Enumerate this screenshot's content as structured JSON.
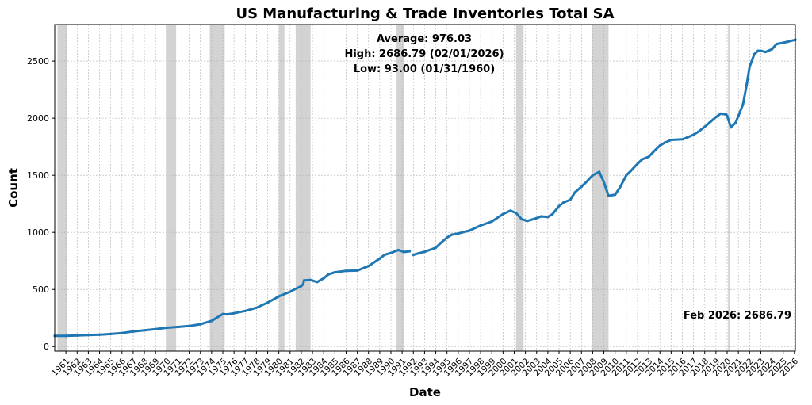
{
  "chart_data": {
    "type": "line",
    "title": "US Manufacturing & Trade Inventories Total SA",
    "xlabel": "Date",
    "ylabel": "Count",
    "xlim": [
      "1960-01-01",
      "2026-02-01"
    ],
    "ylim": [
      -40,
      2820
    ],
    "yticks": [
      0,
      500,
      1000,
      1500,
      2000,
      2500
    ],
    "xticks": [
      "1961",
      "1962",
      "1963",
      "1964",
      "1965",
      "1966",
      "1967",
      "1968",
      "1969",
      "1970",
      "1971",
      "1972",
      "1973",
      "1974",
      "1975",
      "1976",
      "1977",
      "1978",
      "1979",
      "1980",
      "1981",
      "1982",
      "1983",
      "1984",
      "1985",
      "1986",
      "1987",
      "1988",
      "1989",
      "1990",
      "1991",
      "1992",
      "1993",
      "1994",
      "1995",
      "1996",
      "1997",
      "1998",
      "1999",
      "2000",
      "2001",
      "2002",
      "2003",
      "2004",
      "2005",
      "2006",
      "2007",
      "2008",
      "2009",
      "2010",
      "2011",
      "2012",
      "2013",
      "2014",
      "2015",
      "2016",
      "2017",
      "2018",
      "2019",
      "2020",
      "2021",
      "2022",
      "2023",
      "2024",
      "2025",
      "2026"
    ],
    "grid": true,
    "stats": {
      "average": "Average: 976.03",
      "high": "High: 2686.79 (02/01/2026)",
      "low": "Low: 93.00 (01/31/1960)"
    },
    "last_label": "Feb 2026: 2686.79",
    "line_color": "#1f77b4",
    "recession_color": "#d3d3d3",
    "recessions": [
      [
        "1960-04-01",
        "1961-02-01"
      ],
      [
        "1969-12-01",
        "1970-11-01"
      ],
      [
        "1973-11-01",
        "1975-03-01"
      ],
      [
        "1980-01-01",
        "1980-07-01"
      ],
      [
        "1981-07-01",
        "1982-11-01"
      ],
      [
        "1990-07-01",
        "1991-03-01"
      ],
      [
        "2001-03-01",
        "2001-11-01"
      ],
      [
        "2007-12-01",
        "2009-06-01"
      ],
      [
        "2020-02-01",
        "2020-04-01"
      ]
    ],
    "series": [
      {
        "segments": [
          [
            [
              "1960-01",
              93
            ],
            [
              "1961-01",
              93
            ],
            [
              "1962-01",
              97
            ],
            [
              "1963-01",
              100
            ],
            [
              "1964-01",
              104
            ],
            [
              "1965-01",
              110
            ],
            [
              "1966-01",
              118
            ],
            [
              "1967-01",
              132
            ],
            [
              "1968-01",
              142
            ],
            [
              "1969-01",
              152
            ],
            [
              "1970-01",
              165
            ],
            [
              "1971-01",
              172
            ],
            [
              "1972-01",
              180
            ],
            [
              "1973-01",
              195
            ],
            [
              "1974-01",
              225
            ],
            [
              "1975-01",
              285
            ],
            [
              "1975-06",
              282
            ],
            [
              "1976-01",
              292
            ],
            [
              "1977-01",
              312
            ],
            [
              "1978-01",
              340
            ],
            [
              "1979-01",
              385
            ],
            [
              "1980-01",
              440
            ],
            [
              "1981-01",
              480
            ],
            [
              "1982-01",
              530
            ],
            [
              "1982-03",
              545
            ],
            [
              "1982-04",
              580
            ],
            [
              "1982-11",
              583
            ],
            [
              "1983-06",
              565
            ],
            [
              "1984-01",
              598
            ],
            [
              "1984-06",
              632
            ],
            [
              "1985-01",
              650
            ],
            [
              "1986-01",
              663
            ],
            [
              "1987-01",
              665
            ],
            [
              "1988-01",
              705
            ],
            [
              "1989-01",
              770
            ],
            [
              "1989-06",
              803
            ],
            [
              "1990-01",
              820
            ],
            [
              "1990-09",
              845
            ],
            [
              "1991-03",
              828
            ],
            [
              "1991-09",
              835
            ]
          ],
          [
            [
              "1992-01",
              803
            ],
            [
              "1992-06",
              815
            ],
            [
              "1993-01",
              830
            ],
            [
              "1994-01",
              865
            ],
            [
              "1994-06",
              905
            ],
            [
              "1995-01",
              955
            ],
            [
              "1995-06",
              980
            ],
            [
              "1996-01",
              990
            ],
            [
              "1997-01",
              1015
            ],
            [
              "1998-01",
              1060
            ],
            [
              "1999-01",
              1095
            ],
            [
              "2000-01",
              1160
            ],
            [
              "2000-09",
              1190
            ],
            [
              "2001-03",
              1170
            ],
            [
              "2001-09",
              1115
            ],
            [
              "2002-03",
              1100
            ],
            [
              "2003-01",
              1125
            ],
            [
              "2003-06",
              1140
            ],
            [
              "2004-01",
              1135
            ],
            [
              "2004-06",
              1160
            ],
            [
              "2005-01",
              1230
            ],
            [
              "2005-06",
              1262
            ],
            [
              "2006-01",
              1285
            ],
            [
              "2006-06",
              1350
            ],
            [
              "2007-01",
              1400
            ],
            [
              "2007-06",
              1440
            ],
            [
              "2008-01",
              1500
            ],
            [
              "2008-08",
              1530
            ],
            [
              "2009-01",
              1440
            ],
            [
              "2009-06",
              1320
            ],
            [
              "2010-01",
              1330
            ],
            [
              "2010-06",
              1390
            ],
            [
              "2011-01",
              1500
            ],
            [
              "2011-06",
              1540
            ],
            [
              "2012-01",
              1600
            ],
            [
              "2012-06",
              1640
            ],
            [
              "2013-01",
              1662
            ],
            [
              "2013-06",
              1705
            ],
            [
              "2014-01",
              1760
            ],
            [
              "2014-06",
              1785
            ],
            [
              "2015-01",
              1810
            ],
            [
              "2016-01",
              1815
            ],
            [
              "2016-06",
              1830
            ],
            [
              "2017-01",
              1855
            ],
            [
              "2017-06",
              1880
            ],
            [
              "2018-01",
              1925
            ],
            [
              "2018-06",
              1960
            ],
            [
              "2019-01",
              2010
            ],
            [
              "2019-06",
              2040
            ],
            [
              "2019-12",
              2032
            ],
            [
              "2020-01",
              2020
            ],
            [
              "2020-05",
              1920
            ],
            [
              "2020-10",
              1960
            ],
            [
              "2021-01",
              2020
            ],
            [
              "2021-06",
              2120
            ],
            [
              "2021-10",
              2300
            ],
            [
              "2022-01",
              2450
            ],
            [
              "2022-06",
              2560
            ],
            [
              "2022-10",
              2590
            ],
            [
              "2023-01",
              2590
            ],
            [
              "2023-06",
              2580
            ],
            [
              "2024-01",
              2605
            ],
            [
              "2024-06",
              2650
            ],
            [
              "2025-01",
              2660
            ],
            [
              "2025-06",
              2670
            ],
            [
              "2026-02",
              2686.79
            ]
          ]
        ]
      }
    ]
  }
}
